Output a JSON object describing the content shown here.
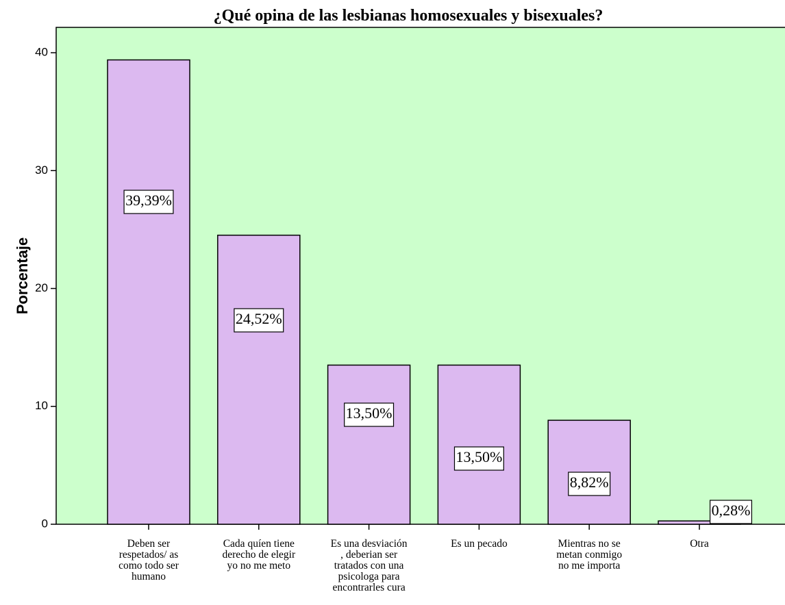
{
  "chart_data": {
    "type": "bar",
    "title": "¿Qué opina de las lesbianas  homosexuales y bisexuales?",
    "y_label": "Porcentaje",
    "categories": [
      "Deben ser\nrespetados/ as\ncomo todo ser\nhumano",
      "Cada quíen tiene\nderecho de elegir\nyo no me meto",
      "Es una desviación\n, deberian ser\ntratados con una\npsicologa para\nencontrarles cura",
      "Es un pecado",
      "Mientras no se\nmetan conmigo\nno me importa",
      "Otra"
    ],
    "values": [
      39.39,
      24.52,
      13.5,
      13.5,
      8.82,
      0.28
    ],
    "value_labels": [
      "39,39%",
      "24,52%",
      "13,50%",
      "13,50%",
      "8,82%",
      "0,28%"
    ],
    "color": "#dcb9f0",
    "background": "#ccffcc",
    "ylim": [
      0,
      42.15
    ],
    "yticks": [
      0,
      10,
      20,
      30,
      40
    ]
  }
}
